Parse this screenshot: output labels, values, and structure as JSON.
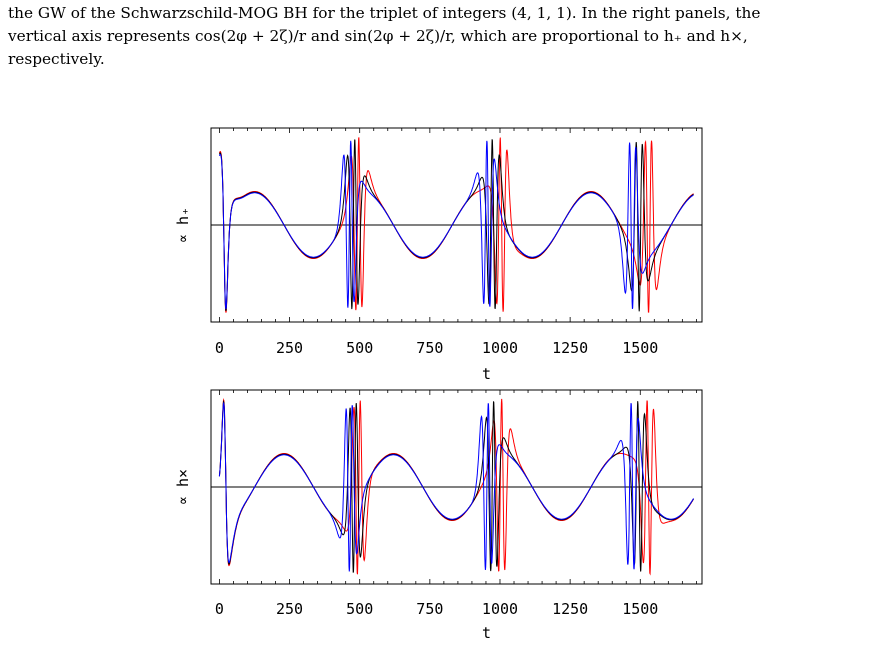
{
  "caption": {
    "line1": "the GW of the Schwarzschild-MOG BH for the triplet of integers (4, 1, 1). In the right panels, the",
    "line2": "vertical axis represents cos(2φ + 2ζ)/r and sin(2φ + 2ζ)/r, which are proportional to h₊ and h×,",
    "line3": "respectively."
  },
  "chart_data": [
    {
      "type": "line",
      "title": "",
      "xlabel": "t",
      "ylabel": "∝ h₊",
      "xlim": [
        -30,
        1720
      ],
      "ylim": [
        -1.1,
        1.1
      ],
      "xticks": [
        "0",
        "250",
        "500",
        "750",
        "1000",
        "1250",
        "1500"
      ],
      "tick_values": [
        0,
        250,
        500,
        750,
        1000,
        1250,
        1500
      ],
      "grid": false,
      "legend": "none",
      "zero_line": true,
      "component": "cos",
      "series": [
        {
          "color": "#ff0000",
          "t_end": 1690,
          "bursts": [
            495,
            1005,
            1530
          ]
        },
        {
          "color": "#000000",
          "t_end": 1690,
          "bursts": [
            480,
            975,
            1495
          ]
        },
        {
          "color": "#0000ff",
          "t_end": 1690,
          "bursts": [
            465,
            955,
            1470
          ]
        }
      ]
    },
    {
      "type": "line",
      "title": "",
      "xlabel": "t",
      "ylabel": "∝ h×",
      "xlim": [
        -30,
        1720
      ],
      "ylim": [
        -1.1,
        1.1
      ],
      "xticks": [
        "0",
        "250",
        "500",
        "750",
        "1000",
        "1250",
        "1500"
      ],
      "tick_values": [
        0,
        250,
        500,
        750,
        1000,
        1250,
        1500
      ],
      "grid": false,
      "legend": "none",
      "zero_line": true,
      "component": "sin",
      "series": [
        {
          "color": "#ff0000",
          "t_end": 1690,
          "bursts": [
            495,
            1005,
            1530
          ]
        },
        {
          "color": "#000000",
          "t_end": 1690,
          "bursts": [
            480,
            975,
            1495
          ]
        },
        {
          "color": "#0000ff",
          "t_end": 1690,
          "bursts": [
            465,
            955,
            1470
          ]
        }
      ]
    }
  ]
}
